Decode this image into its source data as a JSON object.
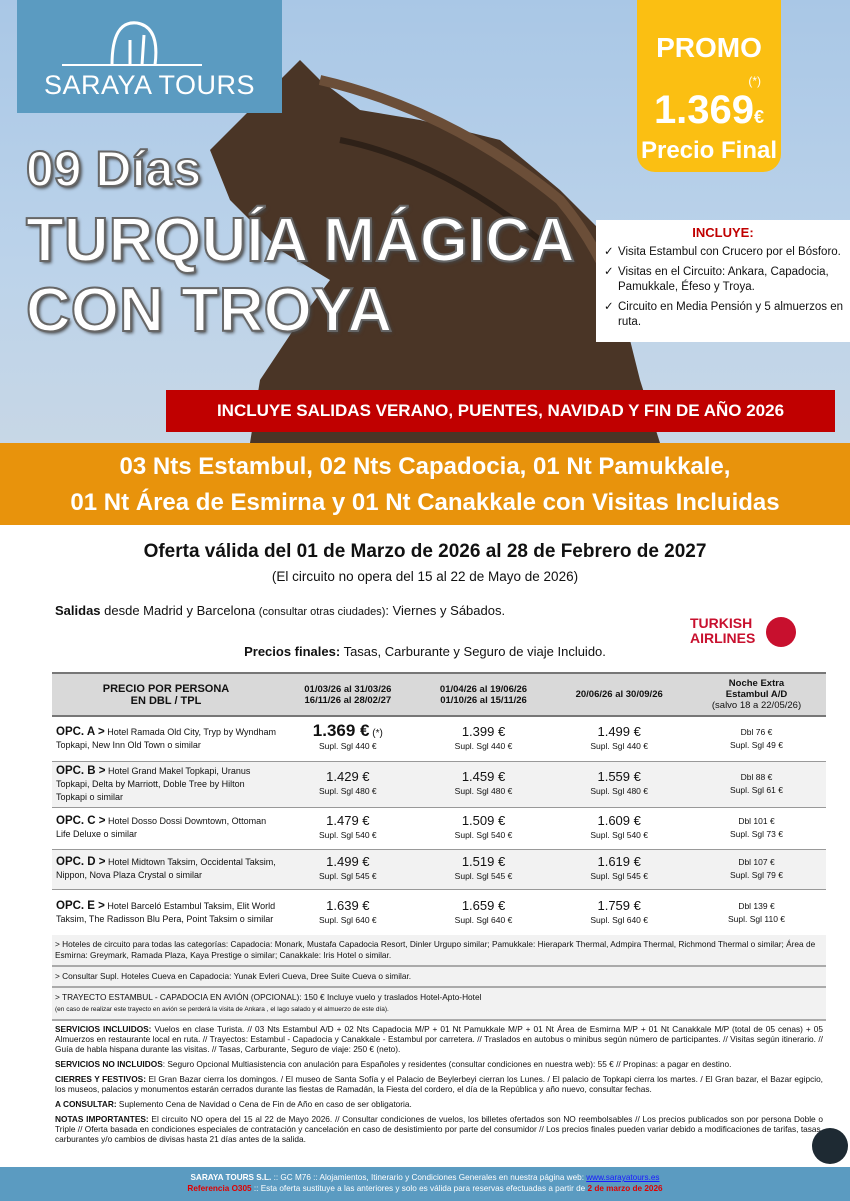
{
  "brand": {
    "name": "SARAYA TOURS"
  },
  "promo": {
    "label": "PROMO",
    "asterisk": "(*)",
    "price": "1.369",
    "currency": "€",
    "final": "Precio Final"
  },
  "title": {
    "days": "09 Días",
    "line1": "TURQUÍA MÁGICA",
    "line2": "CON TROYA"
  },
  "includes": {
    "heading": "INCLUYE:",
    "items": [
      "Visita Estambul con Crucero por el Bósforo.",
      "Visitas en el Circuito: Ankara, Capadocia, Pamukkale, Éfeso y Troya.",
      "Circuito en Media Pensión y 5 almuerzos en ruta."
    ]
  },
  "banner": "INCLUYE SALIDAS VERANO, PUENTES, NAVIDAD Y FIN DE AÑO 2026",
  "nights": {
    "line1": "03 Nts Estambul, 02 Nts Capadocia, 01 Nt Pamukkale,",
    "line2": "01 Nt Área de Esmirna y 01 Nt Canakkale con Visitas Incluidas"
  },
  "offer": {
    "title": "Oferta válida del 01 de Marzo de 2026 al 28 de Febrero de 2027",
    "note": "(El circuito no opera del 15 al 22 de Mayo de 2026)"
  },
  "departures": {
    "label": "Salidas",
    "text": " desde Madrid y Barcelona ",
    "small": "(consultar otras ciudades)",
    "days": ": Viernes y Sábados."
  },
  "airline": {
    "line1": "TURKISH",
    "line2": "AIRLINES"
  },
  "final_prices": {
    "label": "Precios finales:",
    "text": " Tasas, Carburante y Seguro de viaje Incluido."
  },
  "table": {
    "headers": [
      {
        "l1": "PRECIO POR PERSONA",
        "l2": "EN DBL / TPL"
      },
      {
        "l1": "01/03/26 al 31/03/26",
        "l2": "16/11/26 al 28/02/27"
      },
      {
        "l1": "01/04/26 al 19/06/26",
        "l2": "01/10/26 al 15/11/26"
      },
      {
        "l1": "20/06/26 al 30/09/26",
        "l2": ""
      },
      {
        "l1": "Noche Extra",
        "l2": "Estambul A/D",
        "l3": "(salvo 18 a 22/05/26)"
      }
    ],
    "rows": [
      {
        "opt": "OPC. A >",
        "hotels": " Hotel Ramada Old City, Tryp by Wyndham Topkapi, New Inn Old Town o similar",
        "p": [
          "1.369 €",
          "1.399 €",
          "1.499 €"
        ],
        "s": [
          "Supl. Sgl 440 €",
          "Supl. Sgl 440 €",
          "Supl. Sgl 440 €"
        ],
        "mark": " (*)",
        "ex": [
          "Dbl 76 €",
          "Supl. Sgl 49 €"
        ]
      },
      {
        "opt": "OPC. B >",
        "hotels": " Hotel Grand Makel Topkapi, Uranus Topkapi, Delta by Marriott, Doble Tree by Hilton Topkapi o similar",
        "p": [
          "1.429 €",
          "1.459 €",
          "1.559 €"
        ],
        "s": [
          "Supl. Sgl 480 €",
          "Supl. Sgl 480 €",
          "Supl. Sgl 480 €"
        ],
        "ex": [
          "Dbl 88 €",
          "Supl. Sgl 61 €"
        ]
      },
      {
        "opt": "OPC. C >",
        "hotels": " Hotel Dosso Dossi Downtown, Ottoman Life Deluxe o similar",
        "p": [
          "1.479 €",
          "1.509 €",
          "1.609 €"
        ],
        "s": [
          "Supl. Sgl 540 €",
          "Supl. Sgl 540 €",
          "Supl. Sgl 540 €"
        ],
        "ex": [
          "Dbl 101 €",
          "Supl. Sgl 73 €"
        ]
      },
      {
        "opt": "OPC. D >",
        "hotels": " Hotel Midtown Taksim, Occidental Taksim, Nippon, Nova Plaza Crystal o similar",
        "p": [
          "1.499 €",
          "1.519 €",
          "1.619 €"
        ],
        "s": [
          "Supl. Sgl 545 €",
          "Supl. Sgl 545 €",
          "Supl. Sgl 545 €"
        ],
        "ex": [
          "Dbl 107 €",
          "Supl. Sgl 79 €"
        ]
      },
      {
        "opt": "OPC. E >",
        "hotels": " Hotel Barceló Estambul Taksim, Elit World Taksim, The Radisson Blu Pera, Point Taksim o similar",
        "p": [
          "1.639 €",
          "1.659 €",
          "1.759 €"
        ],
        "s": [
          "Supl. Sgl 640 €",
          "Supl. Sgl 640 €",
          "Supl. Sgl 640 €"
        ],
        "ex": [
          "Dbl 139 €",
          "Supl. Sgl 110 €"
        ]
      }
    ]
  },
  "notes": {
    "n1": "> Hoteles de circuito para todas las categorías: Capadocia: Monark, Mustafa Capadocia Resort, Dinler Urgupo similar; Pamukkale: Hierapark Thermal, Admpira Thermal, Richmond Thermal o similar; Área de Esmirna: Greymark, Ramada Plaza, Kaya Prestige o similar; Canakkale: Iris Hotel o similar.",
    "n2": "> Consultar Supl. Hoteles Cueva en Capadocia: Yunak Evleri Cueva, Dree Suite Cueva o similar.",
    "n3": "> TRAYECTO ESTAMBUL - CAPADOCIA EN AVIÓN (OPCIONAL): 150 € Incluye vuelo y traslados Hotel-Apto-Hotel",
    "n3s": "(en caso de realizar este trayecto en avión se perderá la visita de Ankara , el lago salado y el almuerzo de este día)."
  },
  "services": [
    {
      "k": "SERVICIOS INCLUIDOS:",
      "v": " Vuelos en clase Turista. // 03 Nts Estambul A/D + 02 Nts Capadocia M/P + 01 Nt Pamukkale M/P + 01 Nt Área de Esmirna M/P + 01 Nt Canakkale M/P (total de 05 cenas) + 05 Almuerzos en restaurante local en ruta. // Trayectos: Estambul - Capadocia y Canakkale - Estambul por carretera. // Traslados en autobus o minibus según número de participantes. // Visitas según itinerario. // Guía de habla hispana durante las visitas. // Tasas, Carburante, Seguro de viaje: 250 € (neto)."
    },
    {
      "k": "SERVICIOS NO INCLUIDOS",
      "v": ": Seguro Opcional Multiasistencia con anulación para Españoles y residentes (consultar condiciones en nuestra web): 55 € // Propinas: a pagar en destino."
    },
    {
      "k": "CIERRES Y FESTIVOS:",
      "v": " El Gran Bazar cierra los domingos. / El museo de Santa Sofía y el Palacio de Beylerbeyi cierran los Lunes. / El palacio de Topkapi cierra los martes. / El Gran bazar, el Bazar egipcio, los museos, palacios y monumentos estarán cerrados durante las fiestas de Ramadán, la Fiesta del cordero, el día de la República y año nuevo, consultar fechas."
    },
    {
      "k": "A CONSULTAR:",
      "v": " Suplemento Cena de Navidad o Cena de Fin de Año en caso de ser obligatoria."
    },
    {
      "k": "NOTAS IMPORTANTES:",
      "v": " El circuito NO opera del 15 al 22 de Mayo 2026. // Consultar condiciones de vuelos, los billetes ofertados son NO reembolsables // Los precios publicados son por persona Doble o Triple // Oferta basada en condiciones especiales de contratación y cancelación en caso de desistimiento por parte del consumidor // Los precios finales pueden variar debido a modificaciones de tarifas, tasas, carburantes y/o cambios de divisas hasta 21 días antes de la salida."
    }
  ],
  "footer": {
    "company": "SARAYA TOURS S.L.",
    "t1": " :: GC M76 ::  Alojamientos, Itinerario y Condiciones Generales en nuestra página web:  ",
    "web": "www.sarayatours.es",
    "ref": "Referencia O305",
    "t2": " :: Esta oferta sustituye a las anteriores y solo es válida para reservas efectuadas a partir de ",
    "date": "2 de marzo de 2026"
  },
  "colors": {
    "brand_blue": "#5b9bc1",
    "promo_yellow": "#fbbf12",
    "banner_red": "#c00000",
    "band_orange": "#e8930c"
  }
}
